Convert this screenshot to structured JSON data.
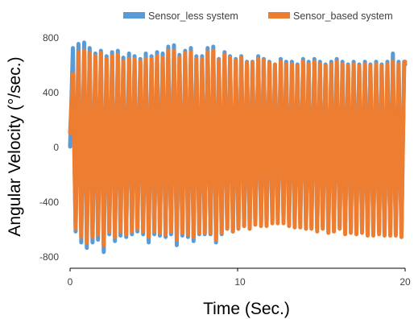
{
  "chart_data": {
    "type": "line",
    "title": "",
    "xlabel": "Time (Sec.)",
    "ylabel": "Angular Velocity (°/sec.)",
    "xlim": [
      0,
      20
    ],
    "ylim": [
      -800,
      800
    ],
    "x_ticks": [
      "0",
      "10",
      "20"
    ],
    "y_ticks": [
      "800",
      "400",
      "0",
      "-400",
      "-800"
    ],
    "grid": false,
    "legend_position": "top",
    "series": [
      {
        "name": "Sensor_less system",
        "color": "#5B9BD5",
        "x": [
          0.0,
          0.17,
          0.33,
          0.5,
          0.67,
          0.84,
          1.0,
          1.17,
          1.34,
          1.51,
          1.67,
          1.84,
          2.01,
          2.18,
          2.34,
          2.51,
          2.68,
          2.85,
          3.01,
          3.18,
          3.35,
          3.52,
          3.69,
          3.85,
          4.02,
          4.19,
          4.36,
          4.52,
          4.69,
          4.86,
          5.03,
          5.19,
          5.36,
          5.53,
          5.7,
          5.86,
          6.03,
          6.2,
          6.37,
          6.53,
          6.7,
          6.87,
          7.04,
          7.21,
          7.37,
          7.54,
          7.71,
          7.88,
          8.04,
          8.21,
          8.38,
          8.55,
          8.71,
          8.88,
          9.05,
          9.22,
          9.38,
          9.55,
          9.72,
          9.89,
          10.05,
          10.22,
          10.39,
          10.56,
          10.72,
          10.89,
          11.06,
          11.23,
          11.4,
          11.56,
          11.73,
          11.9,
          12.07,
          12.23,
          12.4,
          12.57,
          12.74,
          12.9,
          13.07,
          13.24,
          13.41,
          13.57,
          13.74,
          13.91,
          14.08,
          14.24,
          14.41,
          14.58,
          14.75,
          14.92,
          15.08,
          15.25,
          15.42,
          15.59,
          15.75,
          15.92,
          16.09,
          16.26,
          16.42,
          16.59,
          16.76,
          16.93,
          17.09,
          17.26,
          17.43,
          17.6,
          17.76,
          17.93,
          18.1,
          18.27,
          18.44,
          18.6,
          18.77,
          18.94,
          19.11,
          19.27,
          19.44,
          19.61,
          19.78,
          19.94,
          20.0
        ],
        "y": [
          0,
          720,
          -620,
          750,
          -700,
          760,
          -740,
          720,
          -700,
          680,
          -680,
          700,
          -770,
          660,
          -640,
          690,
          -690,
          700,
          -650,
          650,
          -660,
          680,
          -640,
          660,
          -620,
          640,
          -640,
          680,
          -700,
          660,
          -640,
          690,
          -650,
          680,
          -660,
          730,
          -640,
          740,
          -720,
          670,
          -650,
          700,
          -660,
          720,
          -690,
          660,
          -640,
          660,
          -640,
          720,
          -640,
          730,
          -700,
          640,
          -640,
          690,
          -600,
          660,
          -620,
          640,
          -600,
          660,
          -580,
          620,
          -600,
          620,
          -560,
          660,
          -560,
          640,
          -560,
          620,
          -540,
          600,
          -520,
          640,
          -520,
          620,
          -540,
          620,
          -560,
          600,
          -560,
          640,
          -580,
          620,
          -580,
          640,
          -600,
          620,
          -580,
          600,
          -620,
          620,
          -600,
          640,
          -580,
          620,
          -620,
          600,
          -600,
          620,
          -620,
          600,
          -600,
          620,
          -640,
          600,
          -640,
          620,
          -620,
          600,
          -640,
          620,
          -640,
          680,
          -640,
          620,
          -660,
          620,
          600
        ]
      },
      {
        "name": "Sensor_based system",
        "color": "#ED7D31",
        "x": [
          0.0,
          0.17,
          0.33,
          0.5,
          0.67,
          0.84,
          1.0,
          1.17,
          1.34,
          1.51,
          1.67,
          1.84,
          2.01,
          2.18,
          2.34,
          2.51,
          2.68,
          2.85,
          3.01,
          3.18,
          3.35,
          3.52,
          3.69,
          3.85,
          4.02,
          4.19,
          4.36,
          4.52,
          4.69,
          4.86,
          5.03,
          5.19,
          5.36,
          5.53,
          5.7,
          5.86,
          6.03,
          6.2,
          6.37,
          6.53,
          6.7,
          6.87,
          7.04,
          7.21,
          7.37,
          7.54,
          7.71,
          7.88,
          8.04,
          8.21,
          8.38,
          8.55,
          8.71,
          8.88,
          9.05,
          9.22,
          9.38,
          9.55,
          9.72,
          9.89,
          10.05,
          10.22,
          10.39,
          10.56,
          10.72,
          10.89,
          11.06,
          11.23,
          11.4,
          11.56,
          11.73,
          11.9,
          12.07,
          12.23,
          12.4,
          12.57,
          12.74,
          12.9,
          13.07,
          13.24,
          13.41,
          13.57,
          13.74,
          13.91,
          14.08,
          14.24,
          14.41,
          14.58,
          14.75,
          14.92,
          15.08,
          15.25,
          15.42,
          15.59,
          15.75,
          15.92,
          16.09,
          16.26,
          16.42,
          16.59,
          16.76,
          16.93,
          17.09,
          17.26,
          17.43,
          17.6,
          17.76,
          17.93,
          18.1,
          18.27,
          18.44,
          18.6,
          18.77,
          18.94,
          19.11,
          19.27,
          19.44,
          19.61,
          19.78,
          19.94,
          20.0
        ],
        "y": [
          100,
          530,
          -600,
          690,
          -660,
          700,
          -700,
          680,
          -660,
          660,
          -640,
          680,
          -720,
          640,
          -620,
          660,
          -660,
          670,
          -620,
          620,
          -640,
          640,
          -620,
          640,
          -600,
          620,
          -620,
          640,
          -660,
          640,
          -620,
          660,
          -630,
          650,
          -640,
          700,
          -620,
          700,
          -680,
          650,
          -630,
          680,
          -640,
          690,
          -660,
          640,
          -630,
          640,
          -630,
          690,
          -630,
          700,
          -680,
          630,
          -630,
          670,
          -600,
          650,
          -620,
          630,
          -600,
          650,
          -580,
          610,
          -600,
          610,
          -570,
          640,
          -580,
          630,
          -580,
          610,
          -560,
          600,
          -560,
          620,
          -560,
          600,
          -580,
          600,
          -590,
          590,
          -590,
          620,
          -600,
          600,
          -600,
          620,
          -620,
          600,
          -600,
          590,
          -630,
          600,
          -620,
          620,
          -600,
          600,
          -640,
          590,
          -630,
          600,
          -640,
          590,
          -630,
          600,
          -650,
          590,
          -650,
          600,
          -640,
          590,
          -650,
          600,
          -650,
          620,
          -650,
          600,
          -660,
          600,
          620
        ]
      }
    ]
  }
}
